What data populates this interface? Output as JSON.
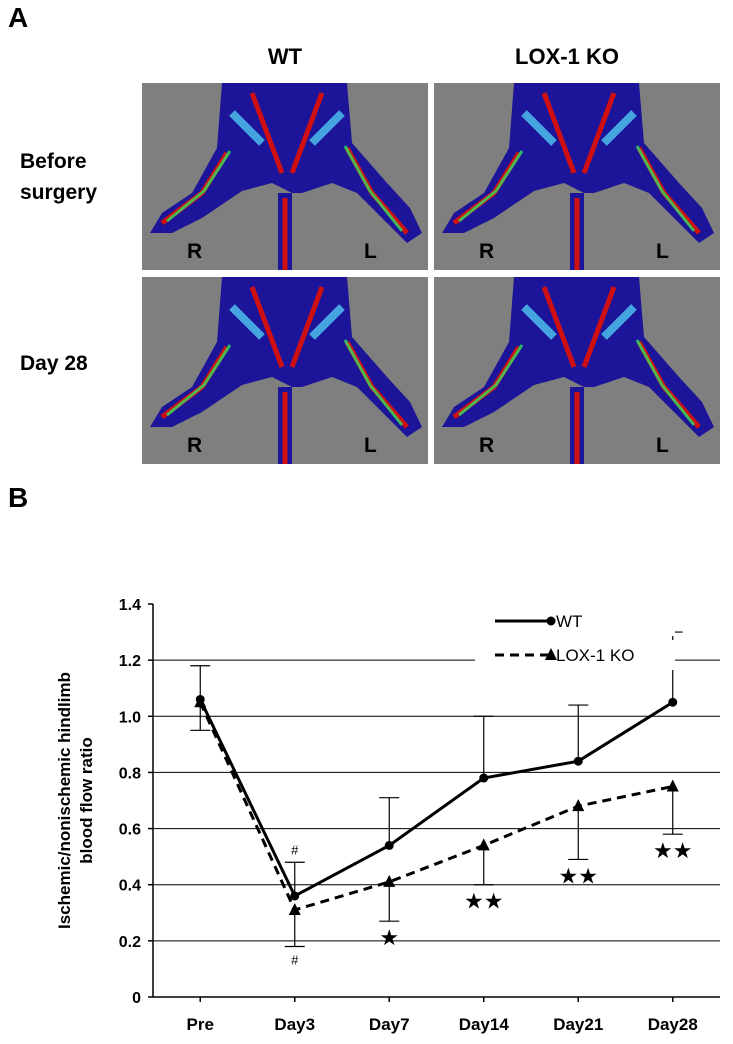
{
  "panel_a": {
    "label": "A",
    "columns": [
      "WT",
      "LOX-1 KO"
    ],
    "rows": [
      "Before surgery",
      "Day 28"
    ],
    "side_labels": [
      "R",
      "L"
    ]
  },
  "panel_b_label": "B",
  "chart_data": {
    "type": "line",
    "ylabel": [
      "Ischemic/nonischemic hindlimb",
      "blood flow ratio"
    ],
    "categories": [
      "Pre",
      "Day3",
      "Day7",
      "Day14",
      "Day21",
      "Day28"
    ],
    "series": [
      {
        "name": "WT",
        "color": "#000000",
        "dashed": false,
        "marker": "circle",
        "error_direction": "up",
        "values": [
          1.06,
          0.36,
          0.54,
          0.78,
          0.84,
          1.05
        ],
        "errors": [
          0.12,
          0.12,
          0.17,
          0.22,
          0.2,
          0.25
        ]
      },
      {
        "name": "LOX-1 KO",
        "color": "#000000",
        "dashed": true,
        "marker": "triangle",
        "error_direction": "down",
        "values": [
          1.05,
          0.31,
          0.41,
          0.54,
          0.68,
          0.75
        ],
        "errors": [
          0.1,
          0.13,
          0.14,
          0.14,
          0.19,
          0.17
        ]
      }
    ],
    "annotations": [
      {
        "text": "#",
        "category": "Day3",
        "series": "WT"
      },
      {
        "text": "#",
        "category": "Day3",
        "series": "LOX-1 KO"
      },
      {
        "text": "★",
        "category": "Day7",
        "series": "LOX-1 KO"
      },
      {
        "text": "★★",
        "category": "Day14",
        "series": "LOX-1 KO"
      },
      {
        "text": "★★",
        "category": "Day21",
        "series": "LOX-1 KO"
      },
      {
        "text": "★★",
        "category": "Day28",
        "series": "LOX-1 KO"
      }
    ],
    "ylim": [
      0,
      1.4
    ],
    "yticks": [
      0,
      0.2,
      0.4,
      0.6,
      0.8,
      {
        "value": 1,
        "label": "1.0"
      },
      1.2,
      1.4
    ],
    "grid": true,
    "legend": "top-right"
  }
}
